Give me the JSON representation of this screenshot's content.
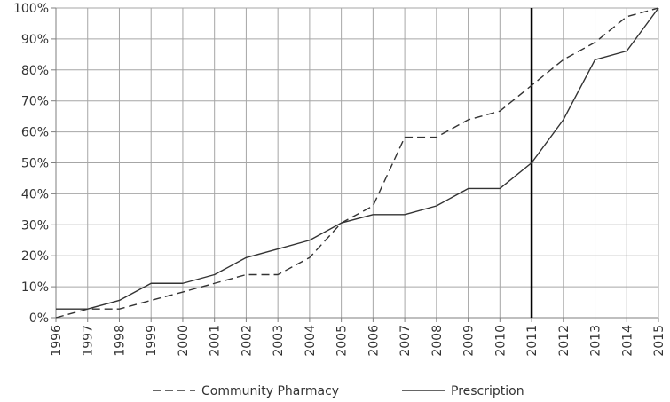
{
  "chart_data": {
    "type": "line",
    "x": [
      "1996",
      "1997",
      "1998",
      "1999",
      "2000",
      "2001",
      "2002",
      "2003",
      "2004",
      "2005",
      "2006",
      "2007",
      "2008",
      "2009",
      "2010",
      "2011",
      "2012",
      "2013",
      "2014",
      "2015"
    ],
    "series": [
      {
        "name": "Community Pharmacy",
        "style": "dashed",
        "values": [
          0,
          2.8,
          2.8,
          5.6,
          8.3,
          11.1,
          13.9,
          13.9,
          19.4,
          30.6,
          36.1,
          58.3,
          58.3,
          63.9,
          66.7,
          75.0,
          83.3,
          88.9,
          97.2,
          100
        ]
      },
      {
        "name": "Prescription",
        "style": "solid",
        "values": [
          2.8,
          2.8,
          5.6,
          11.1,
          11.1,
          13.9,
          19.4,
          22.2,
          25.0,
          30.6,
          33.3,
          33.3,
          36.1,
          41.7,
          41.7,
          50.0,
          63.9,
          83.3,
          86.1,
          100
        ]
      }
    ],
    "y_ticks": [
      "0%",
      "10%",
      "20%",
      "30%",
      "40%",
      "50%",
      "60%",
      "70%",
      "80%",
      "90%",
      "100%"
    ],
    "ylim": [
      0,
      100
    ],
    "vertical_marker_x": "2011",
    "grid": true,
    "legend": "bottom",
    "colors": {
      "line": "#333333",
      "grid": "#a6a6a6",
      "axis": "#7f7f7f",
      "marker": "#000000"
    }
  }
}
